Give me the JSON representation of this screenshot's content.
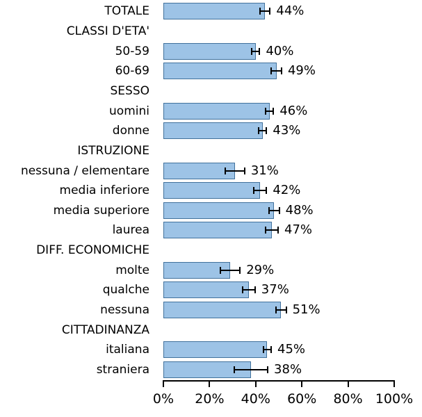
{
  "chart_data": {
    "type": "bar",
    "orientation": "horizontal",
    "title": "",
    "xlabel": "",
    "ylabel": "",
    "xlim": [
      0,
      100
    ],
    "grid": false,
    "legend": null,
    "x_ticks": [
      {
        "value": 0,
        "label": "0%"
      },
      {
        "value": 20,
        "label": "20%"
      },
      {
        "value": 40,
        "label": "40%"
      },
      {
        "value": 60,
        "label": "60%"
      },
      {
        "value": 80,
        "label": "80%"
      },
      {
        "value": 100,
        "label": "100%"
      }
    ],
    "rows": [
      {
        "kind": "bar",
        "label": "TOTALE",
        "value": 44,
        "error": 2.5,
        "value_label": "44%"
      },
      {
        "kind": "header",
        "label": "CLASSI D'ETA'"
      },
      {
        "kind": "bar",
        "label": "50-59",
        "value": 40,
        "error": 2,
        "value_label": "40%"
      },
      {
        "kind": "bar",
        "label": "60-69",
        "value": 49,
        "error": 2.5,
        "value_label": "49%"
      },
      {
        "kind": "header",
        "label": "SESSO"
      },
      {
        "kind": "bar",
        "label": "uomini",
        "value": 46,
        "error": 2,
        "value_label": "46%"
      },
      {
        "kind": "bar",
        "label": "donne",
        "value": 43,
        "error": 2,
        "value_label": "43%"
      },
      {
        "kind": "header",
        "label": "ISTRUZIONE"
      },
      {
        "kind": "bar",
        "label": "nessuna / elementare",
        "value": 31,
        "error": 4.5,
        "value_label": "31%"
      },
      {
        "kind": "bar",
        "label": "media inferiore",
        "value": 42,
        "error": 3,
        "value_label": "42%"
      },
      {
        "kind": "bar",
        "label": "media superiore",
        "value": 48,
        "error": 2.5,
        "value_label": "48%"
      },
      {
        "kind": "bar",
        "label": "laurea",
        "value": 47,
        "error": 3,
        "value_label": "47%"
      },
      {
        "kind": "header",
        "label": "DIFF. ECONOMICHE"
      },
      {
        "kind": "bar",
        "label": "molte",
        "value": 29,
        "error": 4.5,
        "value_label": "29%"
      },
      {
        "kind": "bar",
        "label": "qualche",
        "value": 37,
        "error": 3,
        "value_label": "37%"
      },
      {
        "kind": "bar",
        "label": "nessuna",
        "value": 51,
        "error": 2.5,
        "value_label": "51%"
      },
      {
        "kind": "header",
        "label": "CITTADINANZA"
      },
      {
        "kind": "bar",
        "label": "italiana",
        "value": 45,
        "error": 2,
        "value_label": "45%"
      },
      {
        "kind": "bar",
        "label": "straniera",
        "value": 38,
        "error": 7.5,
        "value_label": "38%"
      }
    ],
    "colors": {
      "bar_fill": "#9DC3E6",
      "bar_border": "#41719C",
      "error_bar": "#000000",
      "axis": "#000000",
      "text": "#000000",
      "background": "#ffffff"
    }
  }
}
